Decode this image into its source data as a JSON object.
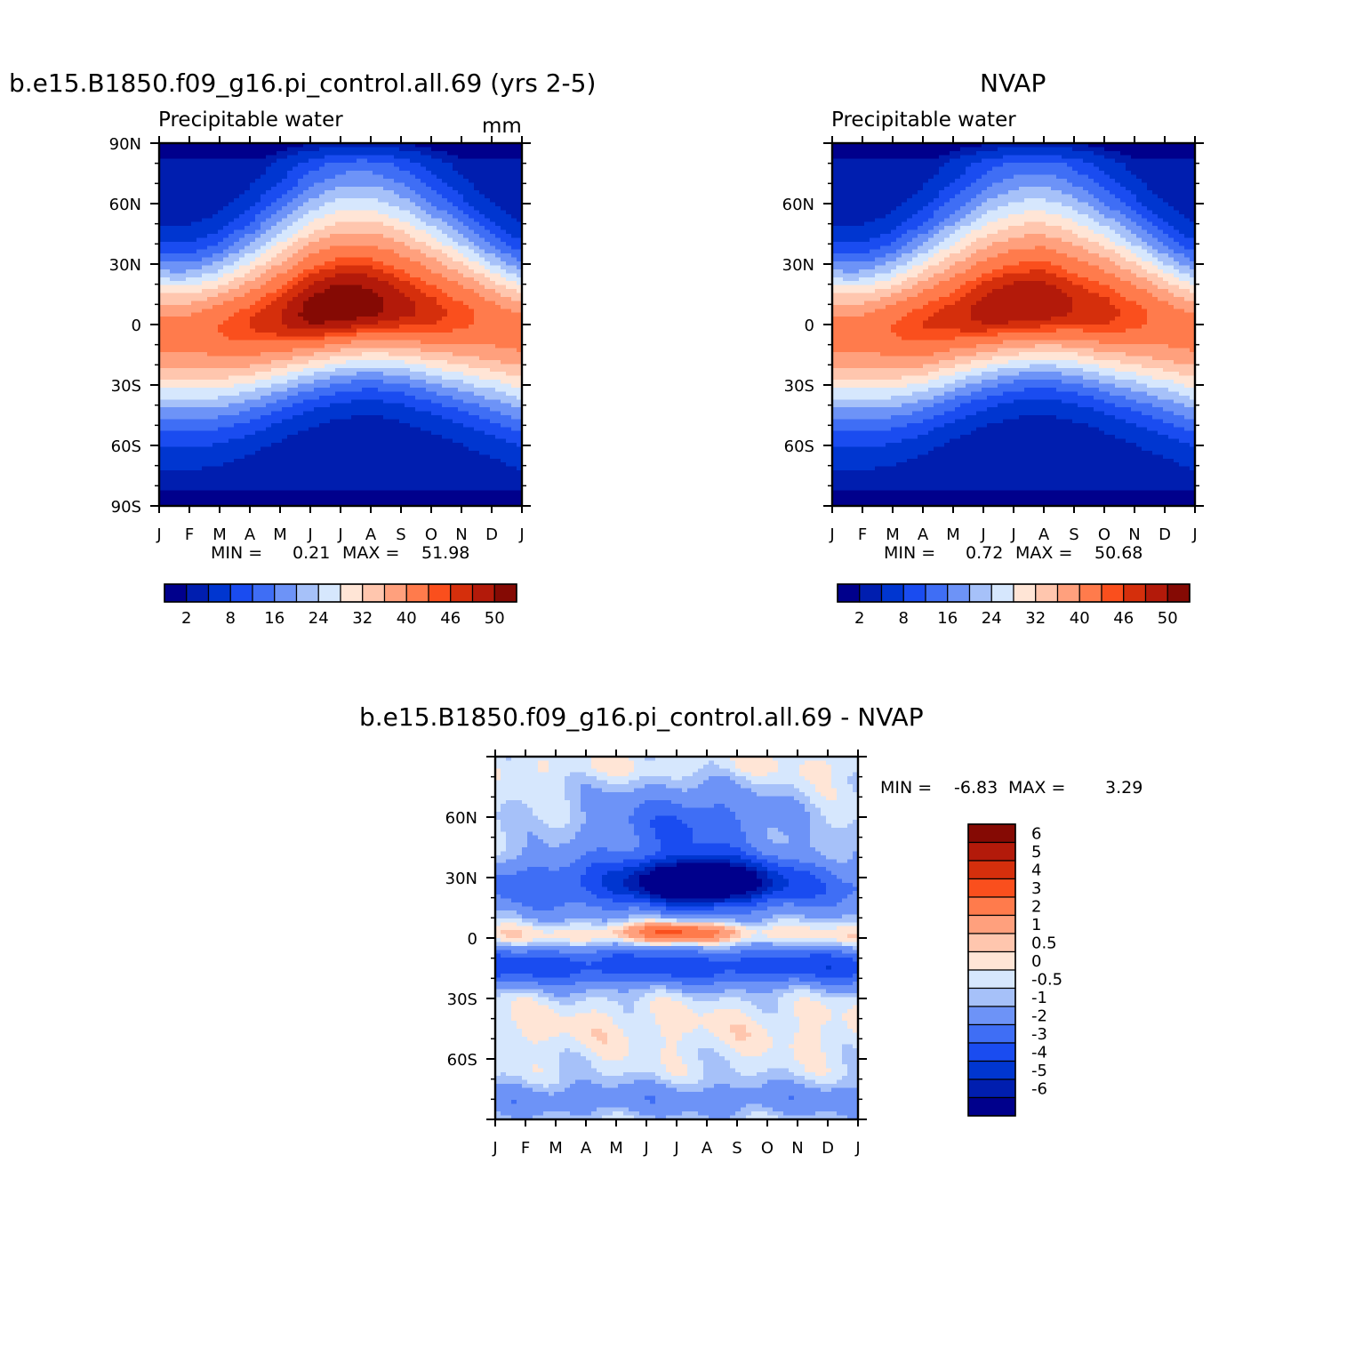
{
  "chart_data": [
    {
      "type": "heatmap",
      "title": "b.e15.B1850.f09_g16.pi_control.all.69 (yrs 2-5)",
      "subtitle": "Precipitable water",
      "units": "mm",
      "x_tick_labels": [
        "J",
        "F",
        "M",
        "A",
        "M",
        "J",
        "J",
        "A",
        "S",
        "O",
        "N",
        "D",
        "J"
      ],
      "y_tick_labels": [
        "90N",
        "60N",
        "30N",
        "0",
        "30S",
        "60S",
        "90S"
      ],
      "y_ticks": [
        90,
        60,
        30,
        0,
        -30,
        -60,
        -90
      ],
      "ylim": [
        -90,
        90
      ],
      "min_label": "MIN =",
      "min": "0.21",
      "max_label": "MAX =",
      "max": "51.98",
      "colorbar_ticks": [
        "2",
        "8",
        "16",
        "24",
        "32",
        "40",
        "46",
        "50"
      ],
      "contour_levels": [
        2,
        4,
        8,
        12,
        16,
        20,
        24,
        28,
        32,
        36,
        40,
        44,
        46,
        48,
        50
      ],
      "colors": [
        "#00008c",
        "#001eaf",
        "#0036d0",
        "#1a4cf0",
        "#3f6ef5",
        "#6d93f7",
        "#a6c1f9",
        "#d6e7fd",
        "#ffe5d6",
        "#ffc6ae",
        "#ffa07d",
        "#ff7b4c",
        "#fa4f1d",
        "#d52f0c",
        "#b31a0a",
        "#850a04"
      ],
      "itcz_lat_by_month": [
        -3,
        -3,
        -2,
        0,
        3,
        6,
        8,
        9,
        8,
        6,
        4,
        1,
        -3
      ],
      "itcz_peak_by_month": [
        42,
        42,
        44,
        46,
        48,
        51,
        52,
        51,
        49,
        47,
        45,
        43,
        42
      ]
    },
    {
      "type": "heatmap",
      "title": "NVAP",
      "subtitle": "Precipitable water",
      "x_tick_labels": [
        "J",
        "F",
        "M",
        "A",
        "M",
        "J",
        "J",
        "A",
        "S",
        "O",
        "N",
        "D",
        "J"
      ],
      "y_tick_labels": [
        "60N",
        "30N",
        "0",
        "30S",
        "60S"
      ],
      "y_ticks": [
        60,
        30,
        0,
        -30,
        -60
      ],
      "ylim": [
        -90,
        90
      ],
      "min_label": "MIN =",
      "min": "0.72",
      "max_label": "MAX =",
      "max": "50.68",
      "colorbar_ticks": [
        "2",
        "8",
        "16",
        "24",
        "32",
        "40",
        "46",
        "50"
      ],
      "contour_levels": [
        2,
        4,
        8,
        12,
        16,
        20,
        24,
        28,
        32,
        36,
        40,
        44,
        46,
        48,
        50
      ],
      "colors": [
        "#00008c",
        "#001eaf",
        "#0036d0",
        "#1a4cf0",
        "#3f6ef5",
        "#6d93f7",
        "#a6c1f9",
        "#d6e7fd",
        "#ffe5d6",
        "#ffc6ae",
        "#ffa07d",
        "#ff7b4c",
        "#fa4f1d",
        "#d52f0c",
        "#b31a0a",
        "#850a04"
      ],
      "itcz_lat_by_month": [
        -3,
        -3,
        -2,
        0,
        3,
        6,
        8,
        9,
        8,
        6,
        4,
        1,
        -3
      ],
      "itcz_peak_by_month": [
        42,
        42,
        44,
        46,
        47,
        49,
        50,
        50,
        48,
        47,
        45,
        43,
        42
      ]
    },
    {
      "type": "heatmap",
      "title": "b.e15.B1850.f09_g16.pi_control.all.69 - NVAP",
      "x_tick_labels": [
        "J",
        "F",
        "M",
        "A",
        "M",
        "J",
        "J",
        "A",
        "S",
        "O",
        "N",
        "D",
        "J"
      ],
      "y_tick_labels": [
        "60N",
        "30N",
        "0",
        "30S",
        "60S"
      ],
      "y_ticks": [
        60,
        30,
        0,
        -30,
        -60
      ],
      "ylim": [
        -90,
        90
      ],
      "min_label": "MIN =",
      "min": "-6.83",
      "max_label": "MAX =",
      "max": "3.29",
      "colorbar_ticks": [
        "6",
        "5",
        "4",
        "3",
        "2",
        "1",
        "0.5",
        "0",
        "-0.5",
        "-1",
        "-2",
        "-3",
        "-4",
        "-5",
        "-6"
      ],
      "contour_levels": [
        -6,
        -5,
        -4,
        -3,
        -2,
        -1,
        -0.5,
        0,
        0.5,
        1,
        2,
        3,
        4,
        5,
        6
      ],
      "colors": [
        "#00008c",
        "#001eaf",
        "#0036d0",
        "#1a4cf0",
        "#3f6ef5",
        "#6d93f7",
        "#a6c1f9",
        "#d6e7fd",
        "#ffe5d6",
        "#ffc6ae",
        "#ffa07d",
        "#ff7b4c",
        "#fa4f1d",
        "#d52f0c",
        "#b31a0a",
        "#850a04"
      ]
    }
  ]
}
